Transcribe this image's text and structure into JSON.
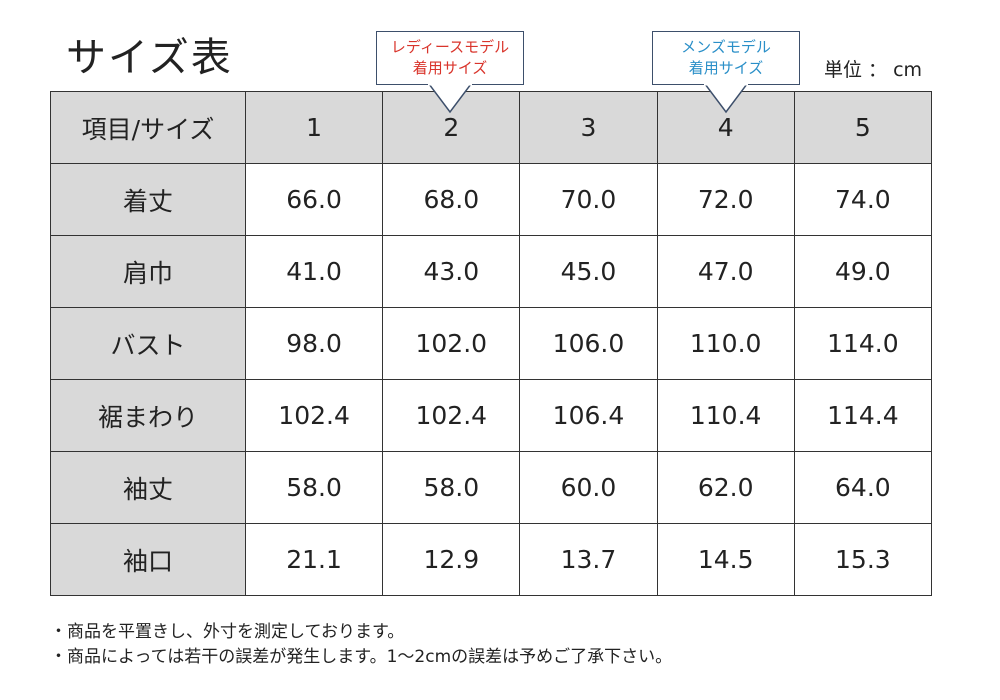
{
  "title": "サイズ表",
  "unit": "単位 ： cm",
  "callouts": {
    "ladies": {
      "line1": "レディースモデル",
      "line2": "着用サイズ",
      "color": "#d9342b"
    },
    "mens": {
      "line1": "メンズモデル",
      "line2": "着用サイズ",
      "color": "#2a8fc8"
    }
  },
  "table": {
    "header": {
      "label": "項目/サイズ",
      "sizes": [
        "1",
        "2",
        "3",
        "4",
        "5"
      ]
    },
    "rows": [
      {
        "label": "着丈",
        "values": [
          "66.0",
          "68.0",
          "70.0",
          "72.0",
          "74.0"
        ]
      },
      {
        "label": "肩巾",
        "values": [
          "41.0",
          "43.0",
          "45.0",
          "47.0",
          "49.0"
        ]
      },
      {
        "label": "バスト",
        "values": [
          "98.0",
          "102.0",
          "106.0",
          "110.0",
          "114.0"
        ]
      },
      {
        "label": "裾まわり",
        "values": [
          "102.4",
          "102.4",
          "106.4",
          "110.4",
          "114.4"
        ]
      },
      {
        "label": "袖丈",
        "values": [
          "58.0",
          "58.0",
          "60.0",
          "62.0",
          "64.0"
        ]
      },
      {
        "label": "袖口",
        "values": [
          "21.1",
          "12.9",
          "13.7",
          "14.5",
          "15.3"
        ]
      }
    ]
  },
  "notes": [
    "・商品を平置きし、外寸を測定しております。",
    "・商品によっては若干の誤差が発生します。1～2cmの誤差は予めご了承下さい。"
  ],
  "colors": {
    "header_fill": "#d9d9d9",
    "border": "#333333",
    "callout_border": "#3d4f6b"
  }
}
